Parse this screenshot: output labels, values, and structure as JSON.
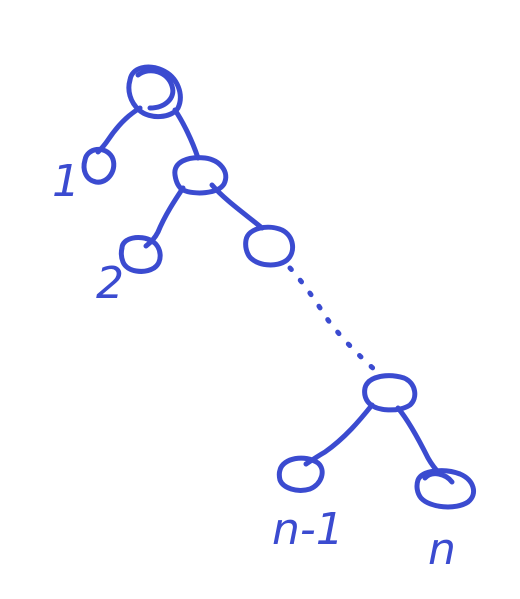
{
  "diagram": {
    "type": "binary-tree-sketch",
    "ink_color": "#3b4bd0",
    "leaf_labels": [
      "1",
      "2",
      "n-1",
      "n"
    ]
  }
}
